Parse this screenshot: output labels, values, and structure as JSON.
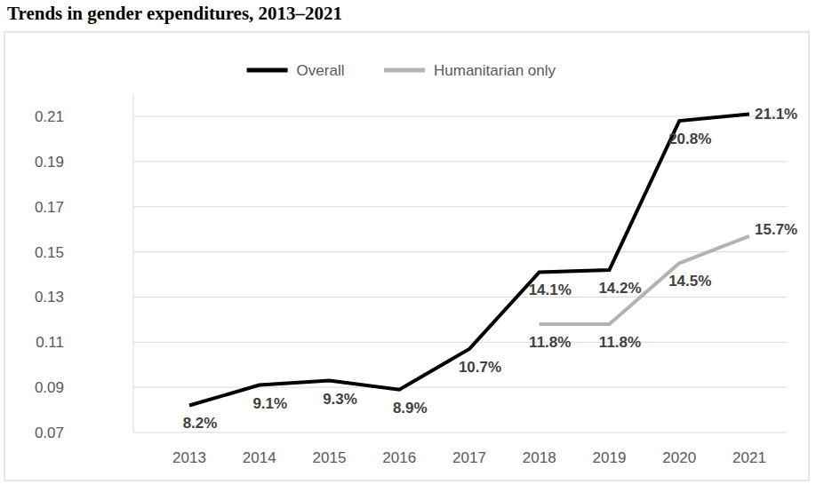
{
  "chart_data": {
    "type": "line",
    "title": "Trends in gender expenditures, 2013–2021",
    "categories": [
      "2013",
      "2014",
      "2015",
      "2016",
      "2017",
      "2018",
      "2019",
      "2020",
      "2021"
    ],
    "series": [
      {
        "name": "Overall",
        "color": "#000000",
        "marker": "none",
        "line_style": "solid",
        "values": [
          0.082,
          0.091,
          0.093,
          0.089,
          0.107,
          0.141,
          0.142,
          0.208,
          0.211
        ],
        "value_labels": [
          "8.2%",
          "9.1%",
          "9.3%",
          "8.9%",
          "10.7%",
          "14.1%",
          "14.2%",
          "20.8%",
          "21.1%"
        ]
      },
      {
        "name": "Humanitarian only",
        "color": "#b3b3b3",
        "marker": "none",
        "line_style": "solid",
        "values": [
          null,
          null,
          null,
          null,
          null,
          0.118,
          0.118,
          0.145,
          0.157
        ],
        "value_labels": [
          null,
          null,
          null,
          null,
          null,
          "11.8%",
          "11.8%",
          "14.5%",
          "15.7%"
        ]
      }
    ],
    "ylim": [
      0.07,
      0.22
    ],
    "yticks": [
      0.07,
      0.09,
      0.11,
      0.13,
      0.15,
      0.17,
      0.19,
      0.21
    ],
    "grid": true,
    "legend": "top",
    "data_labels": true
  }
}
